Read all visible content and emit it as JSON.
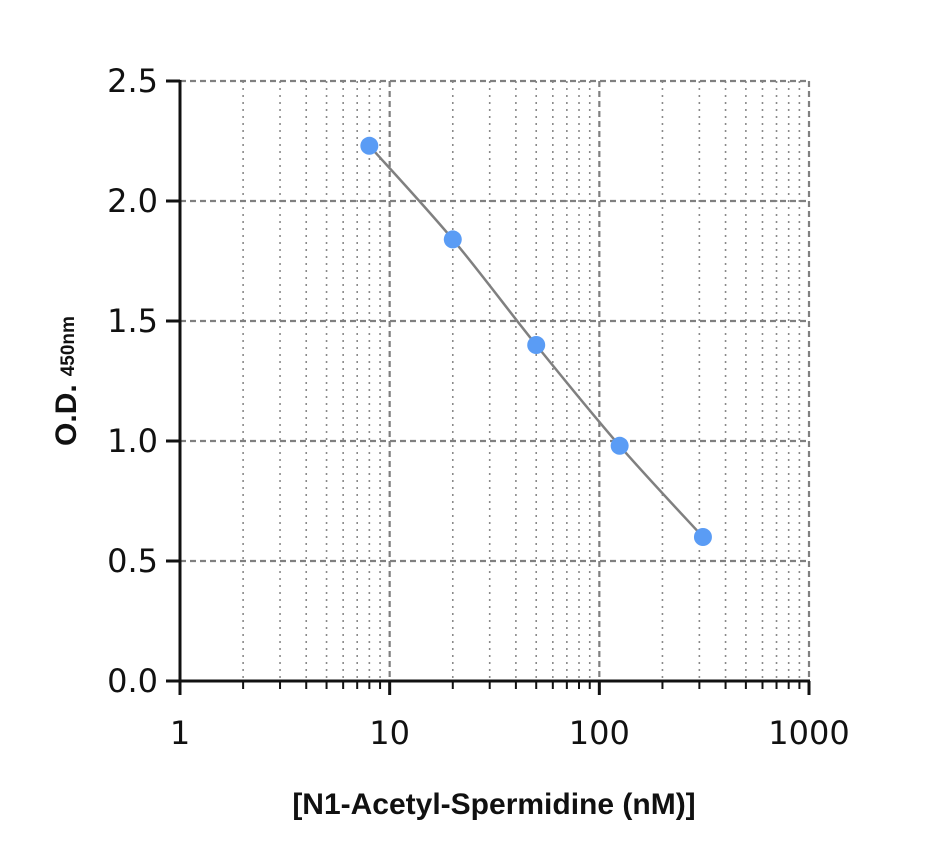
{
  "chart_data": {
    "type": "scatter",
    "title": "",
    "xlabel": "[N1-Acetyl-Spermidine (nM)]",
    "ylabel": "O.D.",
    "ylabel_sub": "450nm",
    "xscale": "log",
    "xlim": [
      1,
      1000
    ],
    "ylim": [
      0.0,
      2.5
    ],
    "x_ticks": [
      1,
      10,
      100,
      1000
    ],
    "x_tick_labels": [
      "1",
      "10",
      "100",
      "1000"
    ],
    "y_ticks": [
      0.0,
      0.5,
      1.0,
      1.5,
      2.0,
      2.5
    ],
    "y_tick_labels": [
      "0.0",
      "0.5",
      "1.0",
      "1.5",
      "2.0",
      "2.5"
    ],
    "grid": true,
    "series": [
      {
        "x": [
          8,
          20,
          50,
          125,
          312
        ],
        "y": [
          2.23,
          1.84,
          1.4,
          0.98,
          0.6
        ],
        "marker_color": "#5a9cf5",
        "line_color": "#808080",
        "fit_curve": true
      }
    ]
  }
}
